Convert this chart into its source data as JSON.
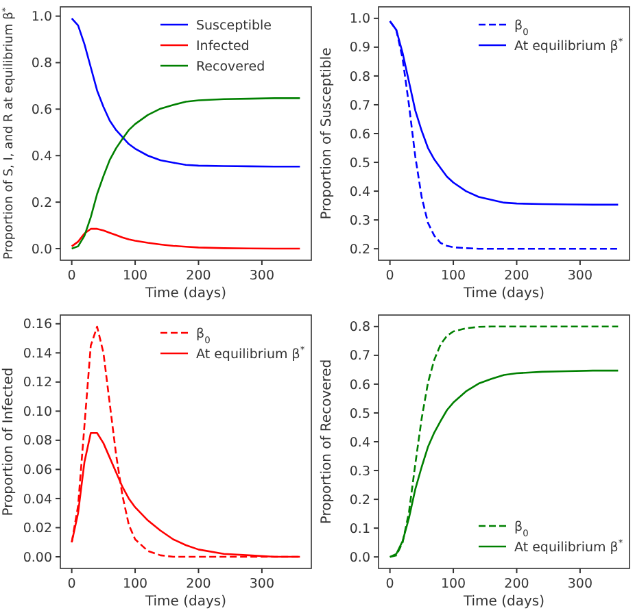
{
  "chart_data": [
    {
      "type": "line",
      "xlabel": "Time (days)",
      "ylabel": "Proportion of S, I, and R at equilibrium β$^{*}$",
      "xlim": [
        -18,
        378
      ],
      "ylim": [
        -0.05,
        1.04
      ],
      "xticks": [
        0,
        100,
        200,
        300
      ],
      "yticks": [
        {
          "value": 0,
          "label": "0.0"
        },
        {
          "value": 0.2,
          "label": "0.2"
        },
        {
          "value": 0.4,
          "label": "0.4"
        },
        {
          "value": 0.6,
          "label": "0.6"
        },
        {
          "value": 0.8,
          "label": "0.8"
        },
        {
          "value": 1,
          "label": "1.0"
        }
      ],
      "legend": "top right",
      "grid": false,
      "x": [
        0,
        10,
        20,
        30,
        40,
        50,
        60,
        70,
        80,
        90,
        100,
        120,
        140,
        160,
        180,
        200,
        240,
        280,
        320,
        360
      ],
      "series": [
        {
          "name": "Susceptible",
          "color": "#0000ff",
          "line_style": "solid",
          "values": [
            0.99,
            0.96,
            0.88,
            0.78,
            0.68,
            0.61,
            0.55,
            0.51,
            0.48,
            0.45,
            0.43,
            0.4,
            0.38,
            0.37,
            0.36,
            0.357,
            0.355,
            0.354,
            0.353,
            0.353
          ]
        },
        {
          "name": "Infected",
          "color": "#ff0000",
          "line_style": "solid",
          "values": [
            0.01,
            0.03,
            0.065,
            0.085,
            0.085,
            0.078,
            0.068,
            0.058,
            0.048,
            0.04,
            0.034,
            0.025,
            0.018,
            0.012,
            0.008,
            0.005,
            0.002,
            0.001,
            0,
            0
          ]
        },
        {
          "name": "Recovered",
          "color": "#008000",
          "line_style": "solid",
          "values": [
            0,
            0.01,
            0.055,
            0.135,
            0.235,
            0.312,
            0.382,
            0.432,
            0.472,
            0.51,
            0.536,
            0.575,
            0.602,
            0.618,
            0.632,
            0.638,
            0.643,
            0.645,
            0.647,
            0.647
          ]
        }
      ]
    },
    {
      "type": "line",
      "xlabel": "Time (days)",
      "ylabel": "Proportion of Susceptible",
      "xlim": [
        -18,
        378
      ],
      "ylim": [
        0.16,
        1.04
      ],
      "xticks": [
        0,
        100,
        200,
        300
      ],
      "yticks": [
        {
          "value": 0.2,
          "label": "0.2"
        },
        {
          "value": 0.3,
          "label": "0.3"
        },
        {
          "value": 0.4,
          "label": "0.4"
        },
        {
          "value": 0.5,
          "label": "0.5"
        },
        {
          "value": 0.6,
          "label": "0.6"
        },
        {
          "value": 0.7,
          "label": "0.7"
        },
        {
          "value": 0.8,
          "label": "0.8"
        },
        {
          "value": 0.9,
          "label": "0.9"
        },
        {
          "value": 1,
          "label": "1.0"
        }
      ],
      "legend": "top right",
      "grid": false,
      "x": [
        0,
        10,
        20,
        30,
        40,
        50,
        60,
        70,
        80,
        90,
        100,
        120,
        140,
        160,
        180,
        200,
        240,
        280,
        320,
        360
      ],
      "series": [
        {
          "name": "β$_{0}$",
          "color": "#0000ff",
          "line_style": "dashed",
          "values": [
            0.99,
            0.96,
            0.86,
            0.7,
            0.52,
            0.38,
            0.29,
            0.245,
            0.22,
            0.21,
            0.205,
            0.202,
            0.2,
            0.2,
            0.2,
            0.2,
            0.2,
            0.2,
            0.2,
            0.2
          ]
        },
        {
          "name": "At equilibrium β$^{*}$",
          "color": "#0000ff",
          "line_style": "solid",
          "values": [
            0.99,
            0.96,
            0.88,
            0.78,
            0.68,
            0.61,
            0.55,
            0.51,
            0.48,
            0.45,
            0.43,
            0.4,
            0.38,
            0.37,
            0.36,
            0.357,
            0.355,
            0.354,
            0.353,
            0.353
          ]
        }
      ]
    },
    {
      "type": "line",
      "xlabel": "Time (days)",
      "ylabel": "Proportion of Infected",
      "xlim": [
        -18,
        378
      ],
      "ylim": [
        -0.008,
        0.166
      ],
      "xticks": [
        0,
        100,
        200,
        300
      ],
      "yticks": [
        {
          "value": 0,
          "label": "0.00"
        },
        {
          "value": 0.02,
          "label": "0.02"
        },
        {
          "value": 0.04,
          "label": "0.04"
        },
        {
          "value": 0.06,
          "label": "0.06"
        },
        {
          "value": 0.08,
          "label": "0.08"
        },
        {
          "value": 0.1,
          "label": "0.10"
        },
        {
          "value": 0.12,
          "label": "0.12"
        },
        {
          "value": 0.14,
          "label": "0.14"
        },
        {
          "value": 0.16,
          "label": "0.16"
        }
      ],
      "legend": "top right",
      "grid": false,
      "x": [
        0,
        10,
        20,
        30,
        40,
        50,
        60,
        70,
        80,
        90,
        100,
        120,
        140,
        160,
        180,
        200,
        240,
        280,
        320,
        360
      ],
      "series": [
        {
          "name": "β$_{0}$",
          "color": "#ff0000",
          "line_style": "dashed",
          "values": [
            0.01,
            0.035,
            0.09,
            0.145,
            0.158,
            0.14,
            0.105,
            0.07,
            0.042,
            0.022,
            0.012,
            0.004,
            0.001,
            0,
            0,
            0,
            0,
            0,
            0,
            0
          ]
        },
        {
          "name": "At equilibrium β$^{*}$",
          "color": "#ff0000",
          "line_style": "solid",
          "values": [
            0.01,
            0.03,
            0.065,
            0.085,
            0.085,
            0.078,
            0.068,
            0.058,
            0.048,
            0.04,
            0.034,
            0.025,
            0.018,
            0.012,
            0.008,
            0.005,
            0.002,
            0.001,
            0,
            0
          ]
        }
      ]
    },
    {
      "type": "line",
      "xlabel": "Time (days)",
      "ylabel": "Proportion of Recovered",
      "xlim": [
        -18,
        378
      ],
      "ylim": [
        -0.04,
        0.84
      ],
      "xticks": [
        0,
        100,
        200,
        300
      ],
      "yticks": [
        {
          "value": 0,
          "label": "0.0"
        },
        {
          "value": 0.1,
          "label": "0.1"
        },
        {
          "value": 0.2,
          "label": "0.2"
        },
        {
          "value": 0.3,
          "label": "0.3"
        },
        {
          "value": 0.4,
          "label": "0.4"
        },
        {
          "value": 0.5,
          "label": "0.5"
        },
        {
          "value": 0.6,
          "label": "0.6"
        },
        {
          "value": 0.7,
          "label": "0.7"
        },
        {
          "value": 0.8,
          "label": "0.8"
        }
      ],
      "legend": "bottom right",
      "grid": false,
      "x": [
        0,
        10,
        20,
        30,
        40,
        50,
        60,
        70,
        80,
        90,
        100,
        120,
        140,
        160,
        180,
        200,
        240,
        280,
        320,
        360
      ],
      "series": [
        {
          "name": "β$_{0}$",
          "color": "#008000",
          "line_style": "dashed",
          "values": [
            0,
            0.005,
            0.05,
            0.155,
            0.322,
            0.48,
            0.605,
            0.685,
            0.738,
            0.768,
            0.783,
            0.794,
            0.799,
            0.8,
            0.8,
            0.8,
            0.8,
            0.8,
            0.8,
            0.8
          ]
        },
        {
          "name": "At equilibrium β$^{*}$",
          "color": "#008000",
          "line_style": "solid",
          "values": [
            0,
            0.01,
            0.055,
            0.135,
            0.235,
            0.312,
            0.382,
            0.432,
            0.472,
            0.51,
            0.536,
            0.575,
            0.602,
            0.618,
            0.632,
            0.638,
            0.643,
            0.645,
            0.647,
            0.647
          ]
        }
      ]
    }
  ]
}
